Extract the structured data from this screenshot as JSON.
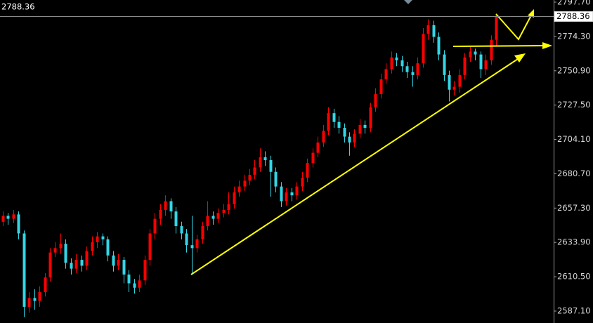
{
  "chart_data": {
    "type": "candlestick",
    "last_price": 2788.36,
    "up_color": "#ff0000",
    "down_color": "#33d6e6",
    "ylim": [
      2578.96,
      2799.14
    ],
    "yticks": [
      {
        "value": 2797.7,
        "label": "2797.70"
      },
      {
        "value": 2774.3,
        "label": "2774.30"
      },
      {
        "value": 2750.9,
        "label": "2750.90"
      },
      {
        "value": 2727.5,
        "label": "2727.50"
      },
      {
        "value": 2704.1,
        "label": "2704.10"
      },
      {
        "value": 2680.7,
        "label": "2680.70"
      },
      {
        "value": 2657.3,
        "label": "2657.30"
      },
      {
        "value": 2633.9,
        "label": "2633.90"
      },
      {
        "value": 2610.5,
        "label": "2610.50"
      },
      {
        "value": 2587.1,
        "label": "2587.10"
      }
    ],
    "open": [
      2648,
      2652,
      2650,
      2653,
      2640,
      2590,
      2596,
      2594,
      2600,
      2610,
      2627,
      2630,
      2633,
      2620,
      2616,
      2622,
      2618,
      2628,
      2634,
      2638,
      2636,
      2625,
      2618,
      2622,
      2612,
      2606,
      2603,
      2608,
      2622,
      2640,
      2650,
      2656,
      2662,
      2655,
      2645,
      2640,
      2632,
      2630,
      2636,
      2645,
      2652,
      2650,
      2654,
      2656,
      2660,
      2668,
      2672,
      2676,
      2680,
      2685,
      2692,
      2690,
      2682,
      2672,
      2662,
      2668,
      2666,
      2672,
      2678,
      2688,
      2695,
      2702,
      2710,
      2722,
      2716,
      2712,
      2706,
      2702,
      2708,
      2714,
      2712,
      2726,
      2735,
      2745,
      2752,
      2760,
      2758,
      2754,
      2750,
      2748,
      2756,
      2776,
      2782,
      2774,
      2762,
      2748,
      2738,
      2740,
      2748,
      2760,
      2764,
      2762,
      2752,
      2758,
      2772
    ],
    "high": [
      2655,
      2654,
      2656,
      2655,
      2642,
      2600,
      2602,
      2604,
      2613,
      2630,
      2634,
      2640,
      2636,
      2623,
      2626,
      2625,
      2631,
      2638,
      2641,
      2640,
      2638,
      2628,
      2626,
      2624,
      2615,
      2609,
      2612,
      2625,
      2643,
      2654,
      2660,
      2666,
      2664,
      2658,
      2648,
      2643,
      2652,
      2639,
      2648,
      2662,
      2655,
      2657,
      2660,
      2668,
      2672,
      2676,
      2680,
      2684,
      2690,
      2698,
      2696,
      2693,
      2685,
      2675,
      2671,
      2671,
      2675,
      2682,
      2691,
      2698,
      2706,
      2714,
      2726,
      2725,
      2720,
      2715,
      2709,
      2711,
      2718,
      2717,
      2729,
      2739,
      2749,
      2756,
      2764,
      2763,
      2761,
      2757,
      2754,
      2760,
      2780,
      2786,
      2785,
      2777,
      2765,
      2751,
      2744,
      2752,
      2763,
      2767,
      2766,
      2764,
      2762,
      2775,
      2790
    ],
    "low": [
      2645,
      2646,
      2647,
      2636,
      2583,
      2586,
      2588,
      2590,
      2597,
      2607,
      2624,
      2626,
      2616,
      2612,
      2613,
      2614,
      2615,
      2625,
      2630,
      2632,
      2621,
      2614,
      2615,
      2606,
      2600,
      2599,
      2600,
      2605,
      2618,
      2636,
      2646,
      2652,
      2650,
      2640,
      2636,
      2627,
      2613,
      2627,
      2633,
      2642,
      2646,
      2647,
      2651,
      2653,
      2657,
      2665,
      2669,
      2673,
      2677,
      2682,
      2686,
      2665,
      2668,
      2658,
      2659,
      2662,
      2663,
      2669,
      2675,
      2685,
      2692,
      2699,
      2707,
      2712,
      2708,
      2702,
      2693,
      2699,
      2705,
      2708,
      2709,
      2723,
      2732,
      2742,
      2749,
      2754,
      2750,
      2746,
      2740,
      2745,
      2753,
      2772,
      2770,
      2758,
      2744,
      2730,
      2734,
      2736,
      2745,
      2757,
      2758,
      2746,
      2748,
      2755,
      2768
    ],
    "close": [
      2652,
      2650,
      2653,
      2640,
      2590,
      2596,
      2594,
      2600,
      2610,
      2627,
      2630,
      2633,
      2620,
      2616,
      2622,
      2618,
      2628,
      2634,
      2638,
      2636,
      2625,
      2618,
      2622,
      2612,
      2606,
      2603,
      2608,
      2622,
      2640,
      2650,
      2656,
      2662,
      2655,
      2645,
      2640,
      2632,
      2630,
      2636,
      2645,
      2652,
      2650,
      2654,
      2656,
      2660,
      2668,
      2672,
      2676,
      2680,
      2685,
      2692,
      2690,
      2682,
      2672,
      2662,
      2668,
      2666,
      2672,
      2678,
      2688,
      2695,
      2702,
      2710,
      2722,
      2716,
      2712,
      2706,
      2702,
      2708,
      2714,
      2712,
      2726,
      2735,
      2745,
      2752,
      2760,
      2758,
      2754,
      2750,
      2748,
      2756,
      2776,
      2782,
      2774,
      2762,
      2748,
      2738,
      2740,
      2748,
      2760,
      2764,
      2762,
      2752,
      2758,
      2772,
      2788.36
    ]
  }
}
